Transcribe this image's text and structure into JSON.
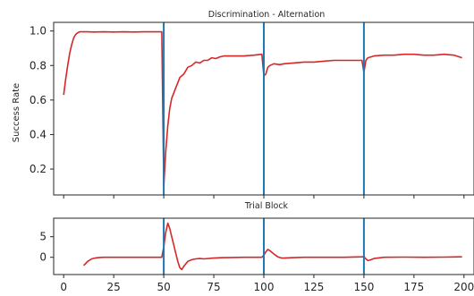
{
  "chart_data": [
    {
      "type": "line",
      "title": "Discrimination - Alternation",
      "xlabel": "Trial Block",
      "ylabel": "Success Rate",
      "xlim": [
        -5,
        205
      ],
      "ylim": [
        0.05,
        1.05
      ],
      "yticks": [
        0.2,
        0.4,
        0.6,
        0.8,
        1.0
      ],
      "ytick_labels": [
        "0.2",
        "0.4",
        "0.6",
        "0.8",
        "1.0"
      ],
      "grid": false,
      "series_color": "#d62728",
      "vline_color": "#1f77b4",
      "vlines": [
        50,
        100,
        150
      ],
      "series": [
        {
          "x": [
            0,
            1,
            2,
            3,
            4,
            5,
            6,
            7,
            8,
            10,
            12,
            15,
            20,
            25,
            30,
            35,
            40,
            45,
            49,
            50,
            51,
            52,
            53,
            54,
            55,
            56,
            57,
            58,
            59,
            60,
            62,
            64,
            66,
            68,
            70,
            72,
            74,
            76,
            78,
            80,
            85,
            90,
            95,
            99,
            100,
            101,
            102,
            103,
            105,
            108,
            110,
            115,
            120,
            125,
            130,
            135,
            140,
            145,
            149,
            150,
            151,
            152,
            155,
            160,
            165,
            170,
            175,
            180,
            185,
            190,
            195,
            199
          ],
          "y": [
            0.63,
            0.72,
            0.8,
            0.87,
            0.92,
            0.96,
            0.98,
            0.99,
            0.995,
            0.995,
            0.995,
            0.994,
            0.995,
            0.994,
            0.995,
            0.994,
            0.995,
            0.995,
            0.995,
            0.1,
            0.3,
            0.45,
            0.55,
            0.61,
            0.64,
            0.67,
            0.7,
            0.73,
            0.74,
            0.75,
            0.79,
            0.8,
            0.82,
            0.815,
            0.83,
            0.83,
            0.845,
            0.84,
            0.85,
            0.855,
            0.855,
            0.855,
            0.86,
            0.865,
            0.74,
            0.75,
            0.79,
            0.8,
            0.81,
            0.805,
            0.81,
            0.815,
            0.82,
            0.82,
            0.825,
            0.83,
            0.83,
            0.83,
            0.83,
            0.76,
            0.83,
            0.845,
            0.855,
            0.86,
            0.86,
            0.865,
            0.865,
            0.86,
            0.86,
            0.865,
            0.86,
            0.845
          ]
        }
      ]
    },
    {
      "type": "line",
      "xlim": [
        -5,
        205
      ],
      "ylim": [
        -4.2,
        9.5
      ],
      "yticks": [
        0,
        5
      ],
      "ytick_labels": [
        "0",
        "5"
      ],
      "xticks": [
        0,
        25,
        50,
        75,
        100,
        125,
        150,
        175,
        200
      ],
      "xtick_labels": [
        "0",
        "25",
        "50",
        "75",
        "100",
        "125",
        "150",
        "175",
        "200"
      ],
      "grid": false,
      "series_color": "#d62728",
      "vline_color": "#1f77b4",
      "vlines": [
        50,
        100,
        150
      ],
      "series": [
        {
          "x": [
            10,
            12,
            14,
            16,
            18,
            20,
            25,
            30,
            40,
            49,
            50,
            51,
            52,
            53,
            54,
            55,
            56,
            57,
            58,
            59,
            60,
            62,
            64,
            66,
            68,
            70,
            75,
            80,
            90,
            99,
            100,
            101,
            102,
            103,
            105,
            107,
            109,
            110,
            115,
            120,
            130,
            140,
            149,
            150,
            151,
            152,
            153,
            155,
            160,
            170,
            180,
            190,
            199
          ],
          "y": [
            -2.0,
            -1.0,
            -0.4,
            -0.15,
            -0.05,
            0.0,
            0.0,
            0.0,
            0.0,
            0.0,
            2.5,
            6.0,
            8.3,
            7.0,
            5.0,
            3.0,
            1.0,
            -1.0,
            -2.5,
            -3.0,
            -2.2,
            -1.0,
            -0.6,
            -0.4,
            -0.3,
            -0.4,
            -0.2,
            -0.1,
            0.0,
            0.0,
            0.5,
            1.3,
            1.9,
            1.6,
            0.8,
            0.1,
            -0.2,
            -0.2,
            -0.1,
            0.0,
            0.0,
            0.0,
            0.1,
            0.2,
            -0.4,
            -0.8,
            -0.7,
            -0.3,
            0.0,
            0.05,
            0.0,
            0.05,
            0.1
          ]
        }
      ]
    }
  ]
}
